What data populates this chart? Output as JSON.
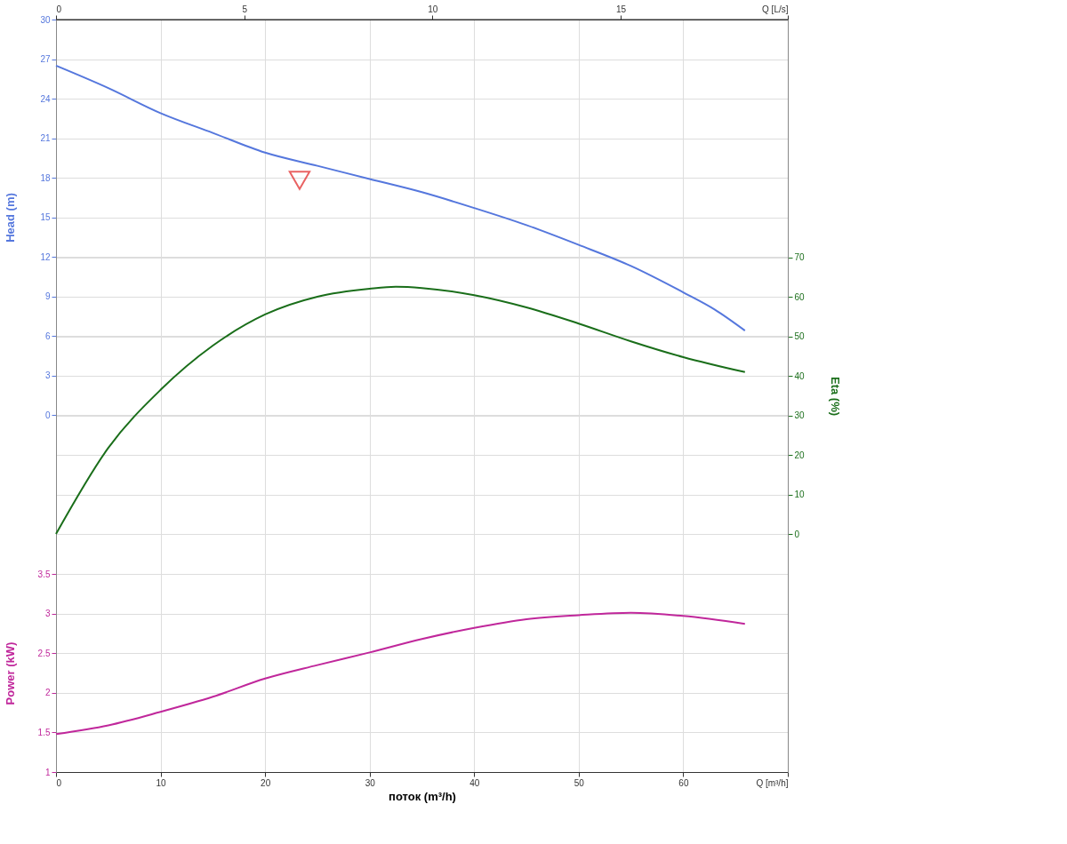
{
  "chart_data": {
    "type": "line",
    "xlabel": "поток (m³/h)",
    "ylabel": "Head (m)",
    "y2label": "Eta (%)",
    "y3label": "Power (kW)",
    "xlim": [
      0,
      70
    ],
    "xticks": [
      0,
      10,
      20,
      30,
      40,
      50,
      60,
      {
        "value": 70,
        "label": "Q [m³/h]"
      }
    ],
    "x2lim": [
      0,
      19.44
    ],
    "x2ticks": [
      0,
      5,
      10,
      15,
      {
        "value": 19.44,
        "label": "Q [L/s]"
      }
    ],
    "ylim": [
      -27.1,
      30
    ],
    "yticks": [
      0,
      3,
      6,
      9,
      12,
      15,
      18,
      21,
      24,
      27,
      30
    ],
    "y2lim": [
      -60.3,
      130.3
    ],
    "y2ticks": [
      0,
      10,
      20,
      30,
      40,
      50,
      60,
      70
    ],
    "y3lim": [
      1,
      10.5
    ],
    "y3ticks": [
      1,
      1.5,
      2,
      2.5,
      3,
      3.5
    ],
    "grid": true,
    "series": [
      {
        "axis": "y",
        "color": "#5577dd",
        "x": [
          0,
          5,
          10,
          15,
          20,
          25,
          30,
          35,
          40,
          45,
          50,
          55,
          60,
          63,
          65.9
        ],
        "values": [
          26.5,
          24.8,
          22.9,
          21.4,
          19.9,
          18.9,
          17.9,
          16.9,
          15.7,
          14.4,
          12.9,
          11.3,
          9.3,
          8.0,
          6.4
        ]
      },
      {
        "axis": "y2",
        "color": "#1a6e1a",
        "x": [
          0,
          5,
          10,
          15,
          20,
          25,
          30,
          32.5,
          35,
          40,
          45,
          50,
          55,
          60,
          65.9
        ],
        "values": [
          0,
          21.8,
          36.5,
          47.7,
          55.6,
          60.1,
          62.1,
          62.6,
          62.3,
          60.5,
          57.4,
          53.3,
          48.8,
          44.8,
          41.0
        ]
      },
      {
        "axis": "y3",
        "color": "#c0279b",
        "x": [
          0,
          5,
          10,
          15,
          20,
          25,
          30,
          35,
          40,
          45,
          50,
          55,
          60,
          65.9
        ],
        "values": [
          1.48,
          1.59,
          1.76,
          1.95,
          2.18,
          2.35,
          2.51,
          2.68,
          2.82,
          2.93,
          2.98,
          3.01,
          2.97,
          2.87
        ]
      },
      {
        "type": "scatter",
        "marker": "triangle",
        "axis": "y",
        "color": "#e02020",
        "x": [
          23.3
        ],
        "values": [
          17.8
        ]
      }
    ]
  }
}
